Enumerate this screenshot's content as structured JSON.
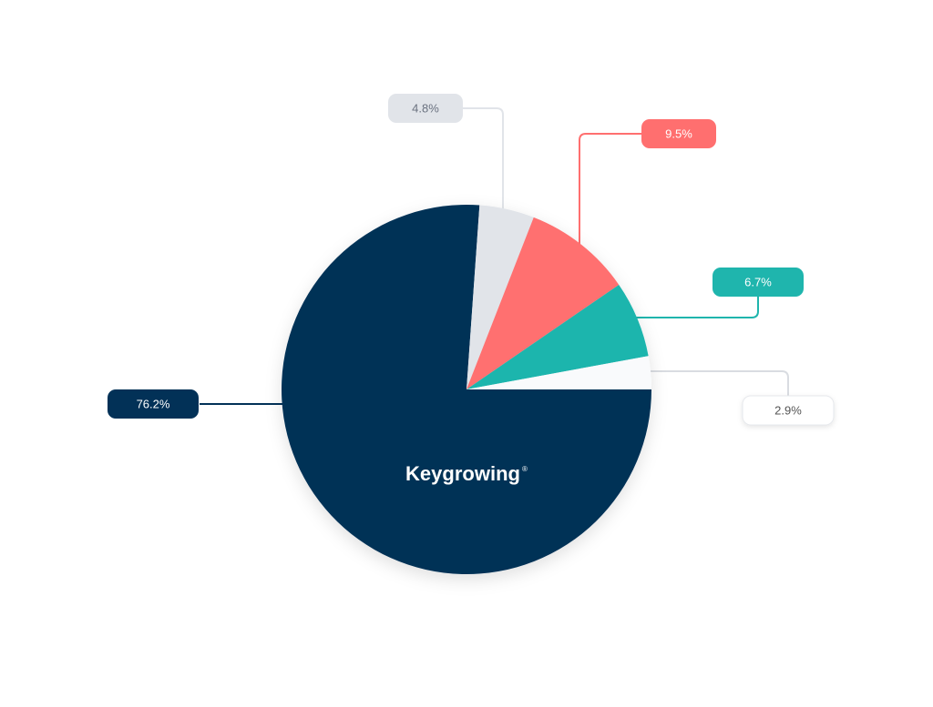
{
  "chart_data": {
    "type": "pie",
    "logo": "Keygrowing",
    "logo_mark": "®",
    "values": [
      76.2,
      4.8,
      9.5,
      6.7,
      2.9
    ],
    "value_labels": [
      "76.2%",
      "4.8%",
      "9.5%",
      "6.7%",
      "2.9%"
    ],
    "colors": [
      "#023157",
      "#e1e4e9",
      "#ff6f6f",
      "#1fb5ad",
      "#f9fafc"
    ]
  }
}
